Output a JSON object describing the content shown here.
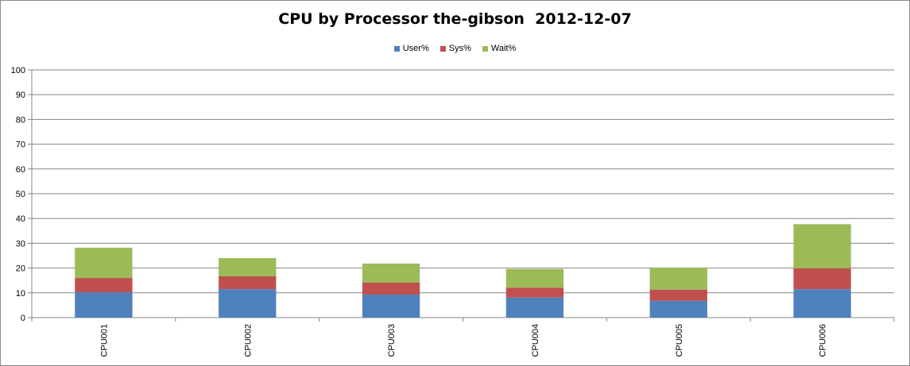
{
  "chart_data": {
    "type": "bar",
    "stacked": true,
    "title": "CPU by Processor the-gibson  2012-12-07",
    "xlabel": "",
    "ylabel": "",
    "ylim": [
      0,
      100
    ],
    "yticks": [
      0,
      10,
      20,
      30,
      40,
      50,
      60,
      70,
      80,
      90,
      100
    ],
    "grid": true,
    "legend_position": "top",
    "categories": [
      "CPU001",
      "CPU002",
      "CPU003",
      "CPU004",
      "CPU005",
      "CPU006"
    ],
    "series": [
      {
        "name": "User%",
        "color": "#4f81bd",
        "values": [
          10.2,
          11.5,
          9.3,
          8.1,
          6.8,
          11.5
        ]
      },
      {
        "name": "Sys%",
        "color": "#c0504d",
        "values": [
          5.8,
          5.2,
          4.8,
          4.0,
          4.5,
          8.4
        ]
      },
      {
        "name": "Wait%",
        "color": "#9bbb59",
        "values": [
          12.2,
          7.3,
          7.7,
          7.5,
          8.8,
          17.8
        ]
      }
    ]
  }
}
